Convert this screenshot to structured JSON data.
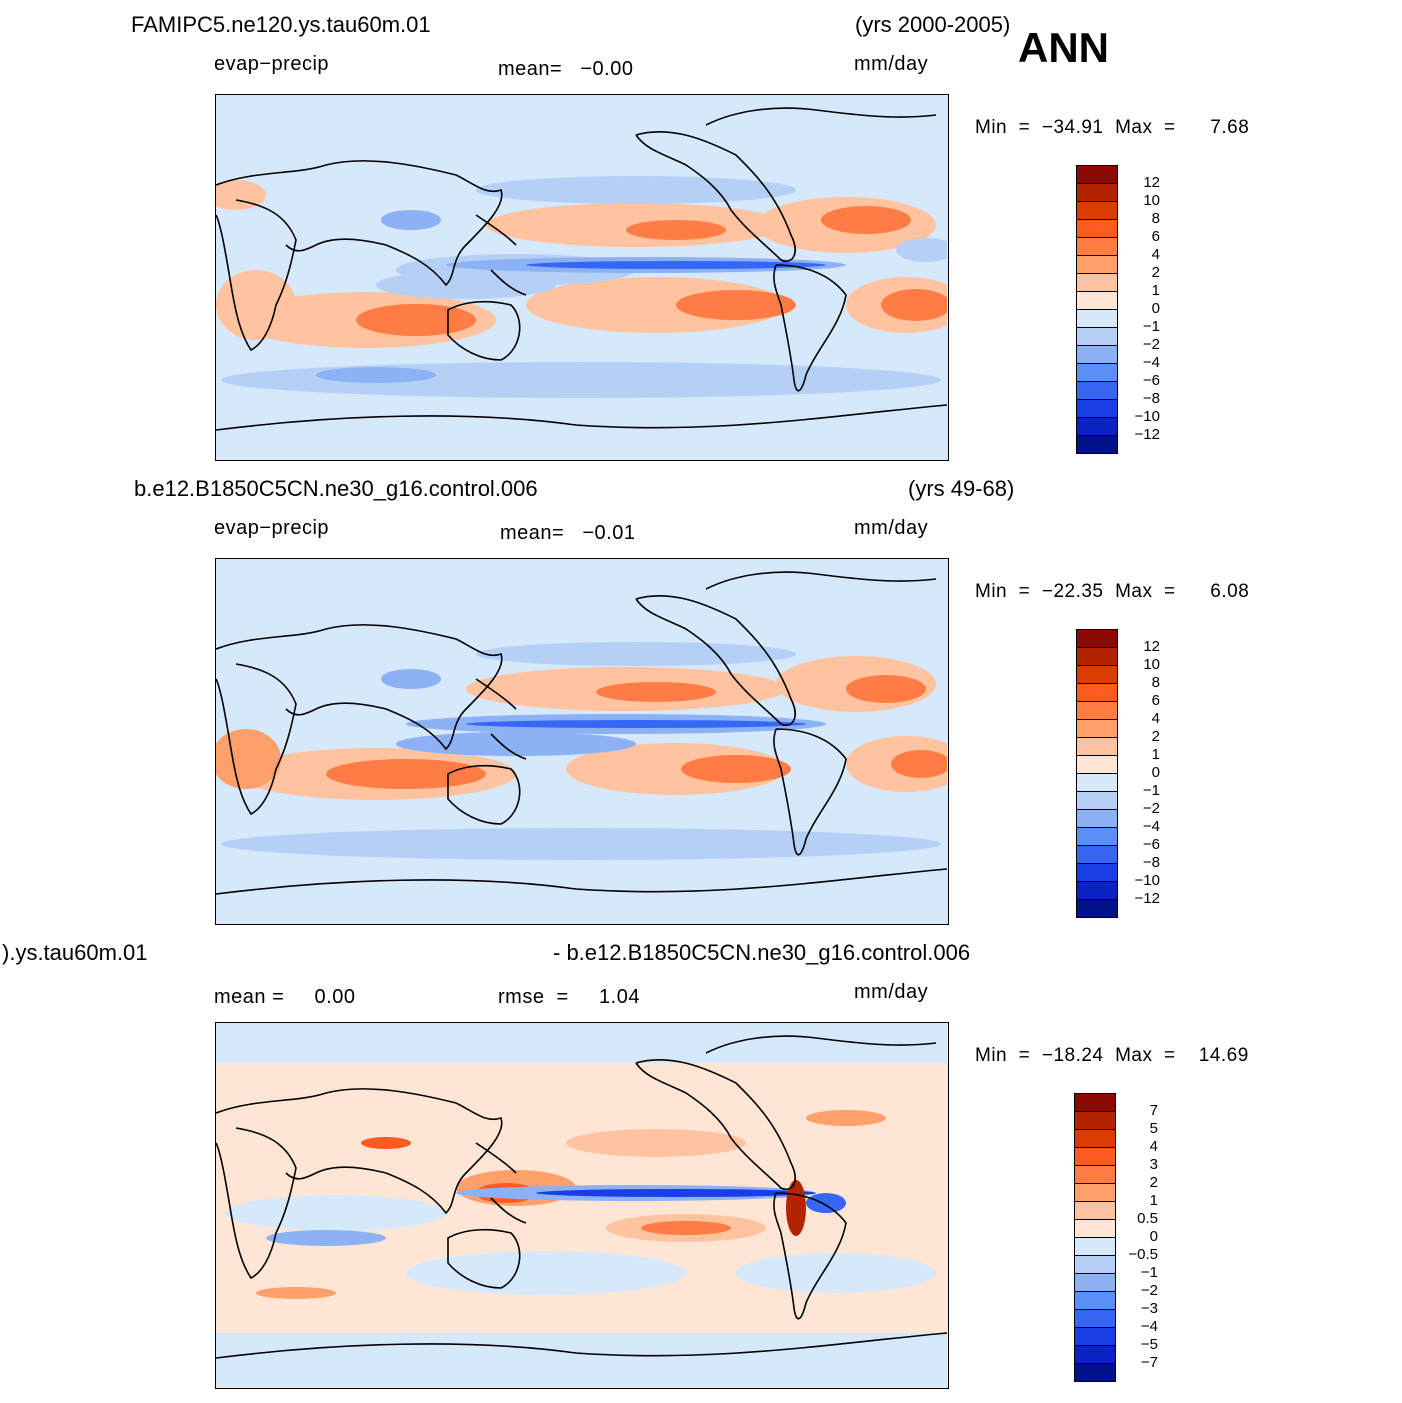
{
  "season": "ANN",
  "panels": [
    {
      "case_name": "FAMIPC5.ne120.ys.tau60m.01",
      "years": "(yrs 2000-2005)",
      "variable": "evap−precip",
      "mean_text": "mean=   −0.00",
      "units": "mm/day",
      "min_label": "Min",
      "min_value": "−34.91",
      "max_label": "Max",
      "max_value": "7.68",
      "colorbar_labels": [
        "12",
        "10",
        "8",
        "6",
        "4",
        "2",
        "1",
        "0",
        "−1",
        "−2",
        "−4",
        "−6",
        "−8",
        "−10",
        "−12"
      ]
    },
    {
      "case_name": "b.e12.B1850C5CN.ne30_g16.control.006",
      "years": "(yrs 49-68)",
      "variable": "evap−precip",
      "mean_text": "mean=   −0.01",
      "units": "mm/day",
      "min_label": "Min",
      "min_value": "−22.35",
      "max_label": "Max",
      "max_value": "6.08",
      "colorbar_labels": [
        "12",
        "10",
        "8",
        "6",
        "4",
        "2",
        "1",
        "0",
        "−1",
        "−2",
        "−4",
        "−6",
        "−8",
        "−10",
        "−12"
      ]
    },
    {
      "case_name_left": ").ys.tau60m.01",
      "case_name_right": "- b.e12.B1850C5CN.ne30_g16.control.006",
      "mean_text": "mean =     0.00",
      "rmse_text": "rmse  =     1.04",
      "units": "mm/day",
      "min_label": "Min",
      "min_value": "−18.24",
      "max_label": "Max",
      "max_value": "14.69",
      "colorbar_labels": [
        "7",
        "5",
        "4",
        "3",
        "2",
        "1",
        "0.5",
        "0",
        "−0.5",
        "−1",
        "−2",
        "−3",
        "−4",
        "−5",
        "−7"
      ]
    }
  ],
  "colors": {
    "scale": [
      "#8b0a00",
      "#b32400",
      "#d93b00",
      "#ff5a1f",
      "#ff7d45",
      "#ff9f6b",
      "#ffc3a0",
      "#ffe6d4",
      "#d6e8fb",
      "#b4d0f6",
      "#8cb2f5",
      "#5b8ff7",
      "#3566f5",
      "#1a3ee6",
      "#0a22c2",
      "#00128a"
    ]
  }
}
